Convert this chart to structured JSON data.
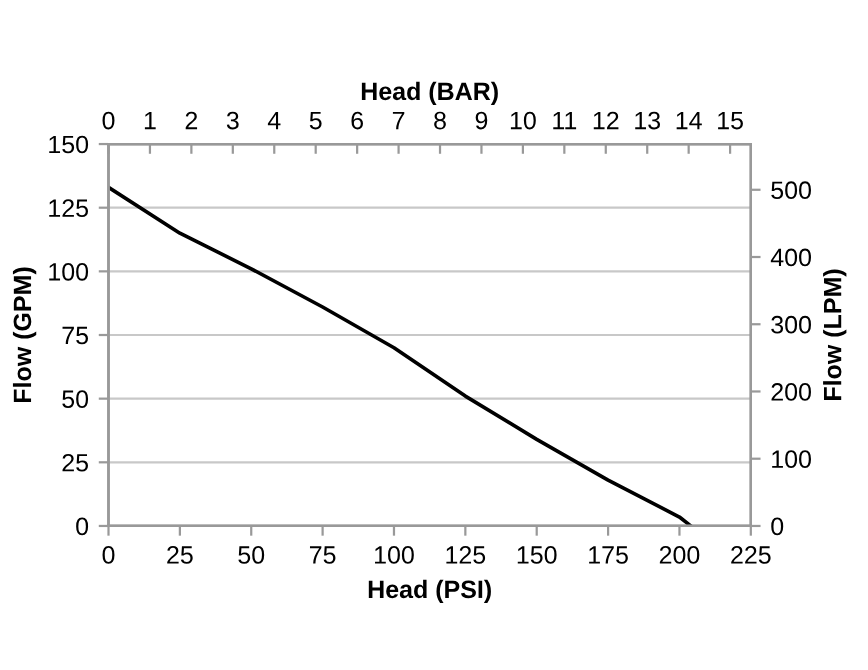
{
  "chart_data": {
    "type": "line",
    "xlabel": "Head (PSI)",
    "x2label": "Head (BAR)",
    "ylabel": "Flow (GPM)",
    "y2label": "Flow (LPM)",
    "x": [
      0,
      25,
      50,
      75,
      100,
      125,
      150,
      175,
      200,
      204
    ],
    "series": [
      {
        "color": "#000000",
        "values": [
          133,
          115,
          101,
          86,
          70,
          51,
          34,
          18,
          3.5,
          0
        ]
      }
    ],
    "xlim": [
      0,
      225
    ],
    "xticks": [
      0,
      25,
      50,
      75,
      100,
      125,
      150,
      175,
      200,
      225
    ],
    "x2lim": [
      0,
      15.5
    ],
    "x2ticks": [
      0,
      1,
      2,
      3,
      4,
      5,
      6,
      7,
      8,
      9,
      10,
      11,
      12,
      13,
      14,
      15
    ],
    "ylim": [
      0,
      150
    ],
    "yticks": [
      0,
      25,
      50,
      75,
      100,
      125,
      150
    ],
    "y2lim": [
      0,
      568
    ],
    "y2ticks": [
      0,
      100,
      200,
      300,
      400,
      500
    ],
    "grid": "y",
    "marker": "none",
    "line_style": "solid"
  }
}
